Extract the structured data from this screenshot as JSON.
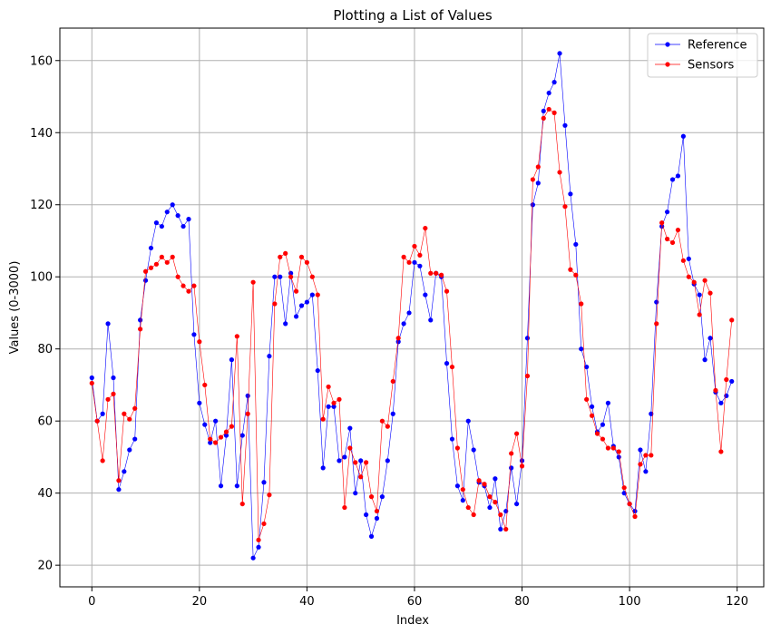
{
  "chart_data": {
    "type": "line",
    "title": "Plotting a List of Values",
    "xlabel": "Index",
    "ylabel": "Values (0-3000)",
    "xlim": [
      -5.95,
      124.95
    ],
    "ylim": [
      14.0,
      169.0
    ],
    "xticks": [
      0,
      20,
      40,
      60,
      80,
      100,
      120
    ],
    "yticks": [
      20,
      40,
      60,
      80,
      100,
      120,
      140,
      160
    ],
    "grid": true,
    "legend_position": "top-right",
    "series": [
      {
        "name": "Reference",
        "color": "#0000ff",
        "marker": "circle",
        "values": [
          72,
          60,
          62,
          87,
          72,
          41,
          46,
          52,
          55,
          88,
          99,
          108,
          115,
          114,
          118,
          120,
          117,
          114,
          116,
          84,
          65,
          59,
          54,
          60,
          42,
          56,
          77,
          42,
          56,
          67,
          22,
          25,
          43,
          78,
          100,
          100,
          87,
          101,
          89,
          92,
          93,
          95,
          74,
          47,
          64,
          64,
          49,
          50,
          58,
          40,
          49,
          34,
          28,
          33,
          39,
          49,
          62,
          82,
          87,
          90,
          104,
          103,
          95,
          88,
          101,
          100,
          76,
          55,
          42,
          38,
          60,
          52,
          43,
          42,
          36,
          44,
          30,
          35,
          47,
          37,
          49,
          83,
          120,
          126,
          146,
          151,
          154,
          162,
          142,
          123,
          109,
          80,
          75,
          64,
          57,
          59,
          65,
          53,
          50,
          40,
          37,
          35,
          52,
          46,
          62,
          93,
          114,
          118,
          127,
          128,
          139,
          105,
          98,
          95,
          77,
          83,
          68,
          65,
          67,
          71
        ]
      },
      {
        "name": "Sensors",
        "color": "#ff0000",
        "marker": "circle",
        "values": [
          70.5,
          60,
          49,
          66,
          67.5,
          43.5,
          62,
          60.5,
          63.5,
          85.5,
          101.5,
          102.5,
          103.5,
          105.5,
          104,
          105.5,
          100,
          97.5,
          96,
          97.5,
          82,
          70,
          55,
          54,
          55.5,
          57,
          58.5,
          83.5,
          37,
          62,
          98.5,
          27,
          31.5,
          39.5,
          92.5,
          105.5,
          106.5,
          100,
          96,
          105.5,
          104,
          100,
          95,
          60.5,
          69.5,
          65,
          66,
          36,
          52.5,
          48.5,
          44.5,
          48.5,
          39,
          35,
          60,
          58.5,
          71,
          83,
          105.5,
          104,
          108.5,
          106,
          113.5,
          101,
          101,
          100.5,
          96,
          75,
          52.5,
          41,
          36,
          34,
          43.5,
          42.5,
          39,
          37.5,
          34,
          30,
          51,
          56.5,
          47.5,
          72.5,
          127,
          130.5,
          144,
          146.5,
          145.5,
          129,
          119.5,
          102,
          100.5,
          92.5,
          66,
          61.5,
          56.5,
          55,
          52.5,
          52.5,
          51.5,
          41.5,
          37,
          33.5,
          48,
          50.5,
          50.5,
          87,
          115,
          110.5,
          109.5,
          113,
          104.5,
          100,
          98.5,
          89.5,
          99,
          95.5,
          68.5,
          51.5,
          71.5,
          88
        ]
      }
    ]
  }
}
